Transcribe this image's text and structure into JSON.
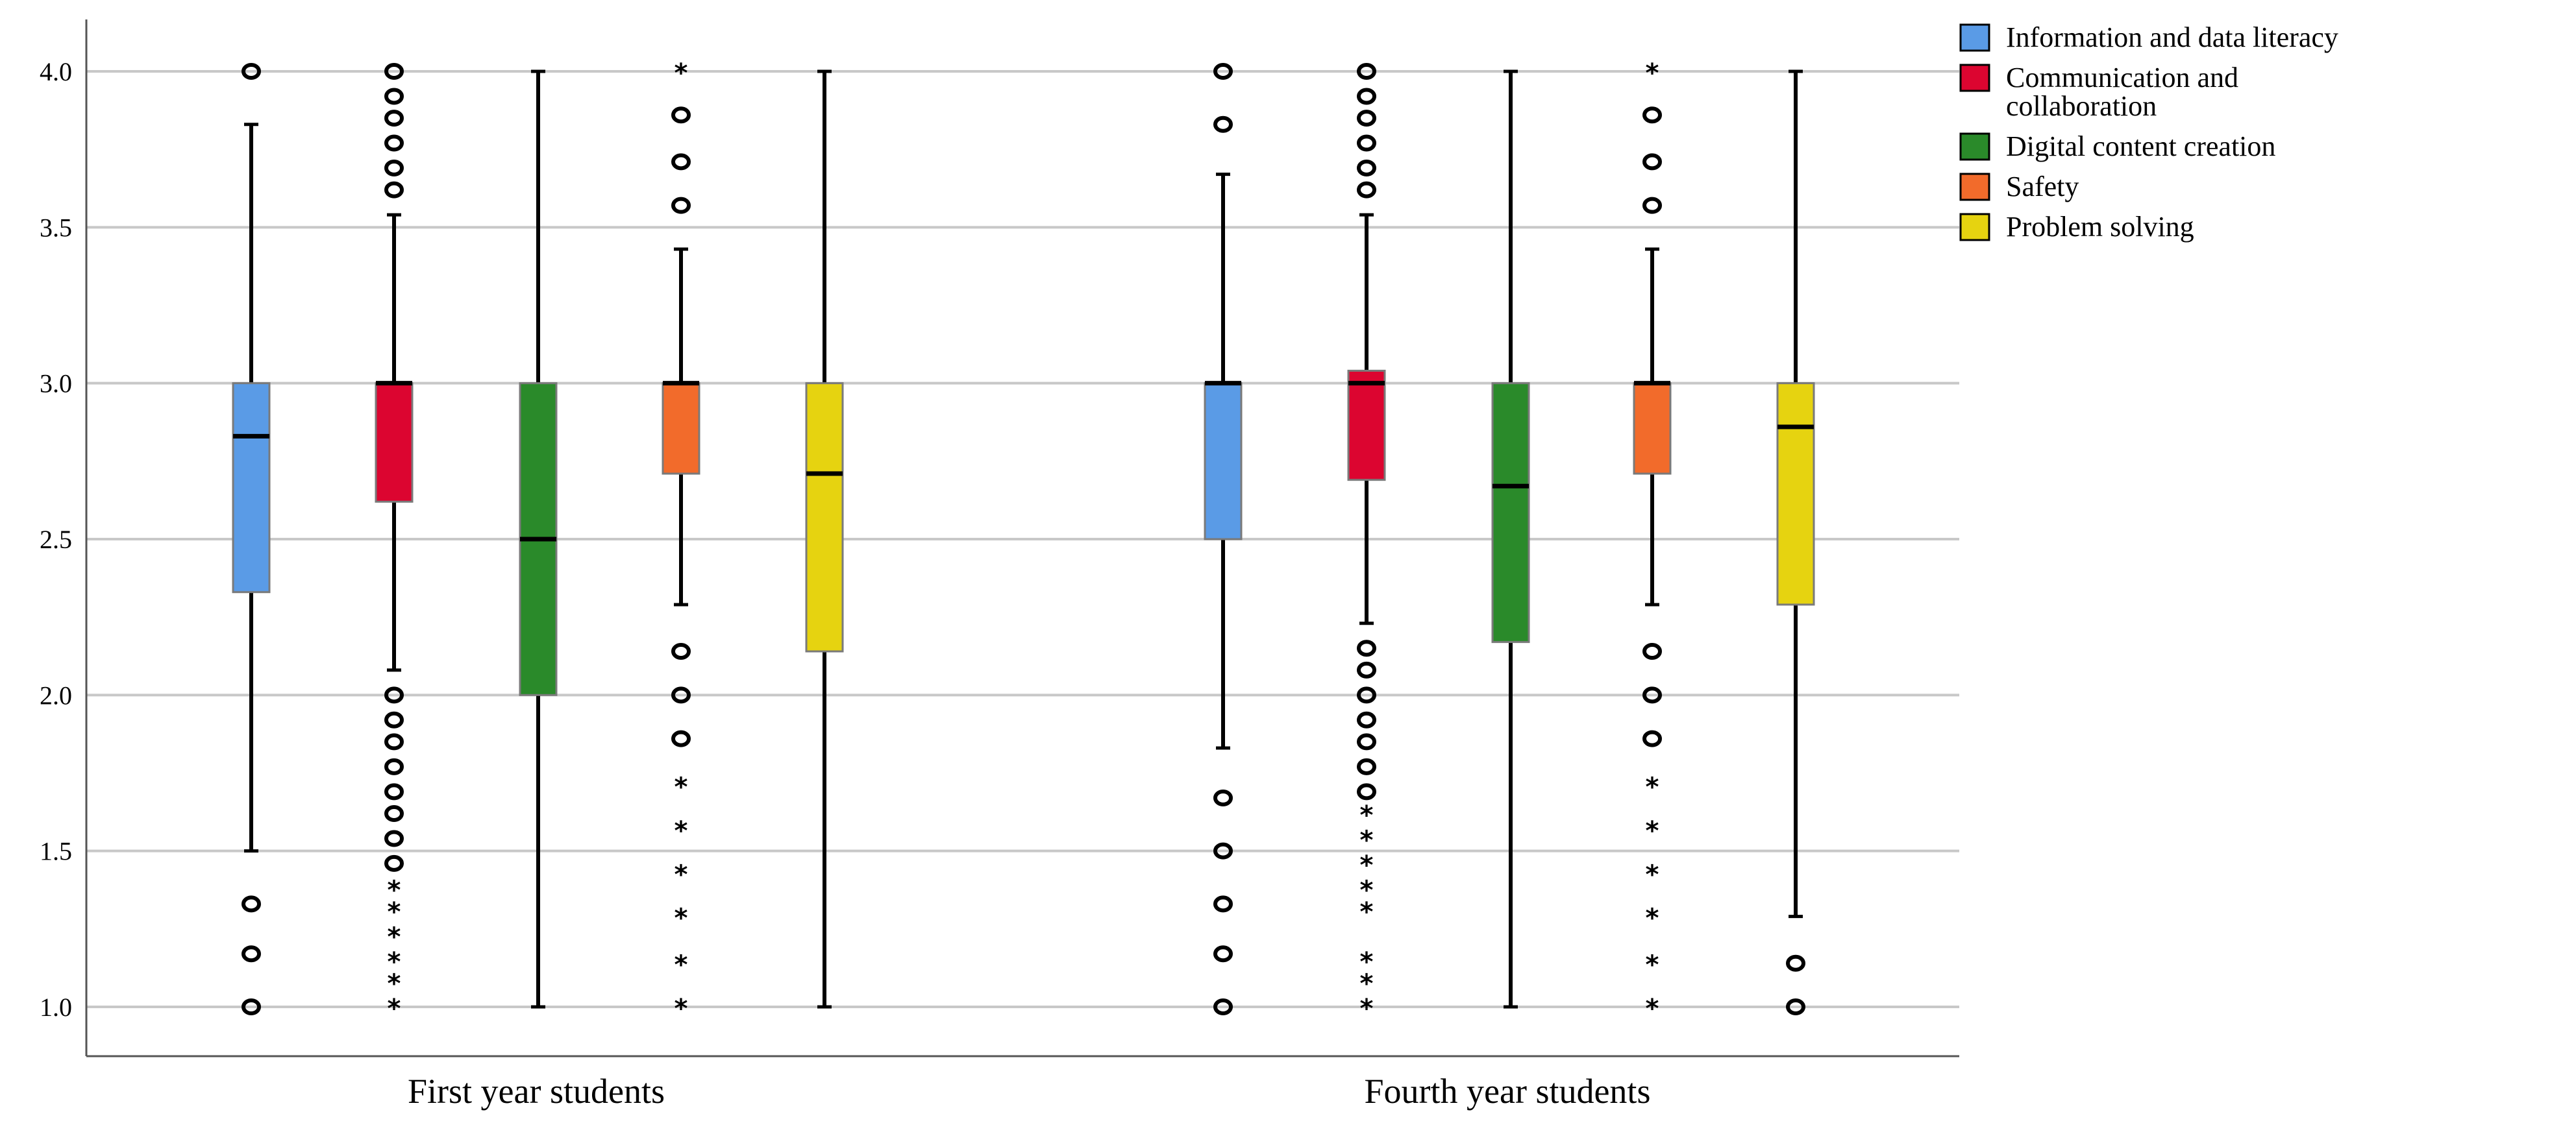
{
  "chart_data": {
    "type": "boxplot",
    "title": "",
    "xlabel": "",
    "ylabel": "",
    "ylim": [
      1.0,
      4.0
    ],
    "yticks": [
      "1.0",
      "1.5",
      "2.0",
      "2.5",
      "3.0",
      "3.5",
      "4.0"
    ],
    "grid": true,
    "legend_position": "top-right",
    "categories": [
      "First year students",
      "Fourth year students"
    ],
    "series": [
      {
        "name": "Information and data literacy",
        "color": "#5a9be6",
        "boxes": [
          {
            "whisker_low": 1.5,
            "q1": 2.33,
            "median": 2.83,
            "q3": 3.0,
            "whisker_high": 3.83,
            "outliers_circle": [
              1.0,
              1.17,
              1.33,
              4.0
            ],
            "outliers_star": []
          },
          {
            "whisker_low": 1.83,
            "q1": 2.5,
            "median": 3.0,
            "q3": 3.0,
            "whisker_high": 3.67,
            "outliers_circle": [
              1.0,
              1.17,
              1.33,
              1.5,
              1.67,
              3.83,
              4.0
            ],
            "outliers_star": []
          }
        ]
      },
      {
        "name": "Communication and\ncollaboration",
        "color": "#dc0530",
        "boxes": [
          {
            "whisker_low": 2.08,
            "q1": 2.62,
            "median": 3.0,
            "q3": 3.0,
            "whisker_high": 3.54,
            "outliers_circle": [
              1.46,
              1.54,
              1.62,
              1.69,
              1.77,
              1.85,
              1.92,
              2.0,
              3.62,
              3.69,
              3.77,
              3.85,
              3.92,
              4.0
            ],
            "outliers_star": [
              1.0,
              1.08,
              1.15,
              1.23,
              1.31,
              1.38
            ]
          },
          {
            "whisker_low": 2.23,
            "q1": 2.69,
            "median": 3.0,
            "q3": 3.04,
            "whisker_high": 3.54,
            "outliers_circle": [
              1.69,
              1.77,
              1.85,
              1.92,
              2.0,
              2.08,
              2.15,
              3.62,
              3.69,
              3.77,
              3.85,
              3.92,
              4.0
            ],
            "outliers_star": [
              1.0,
              1.08,
              1.15,
              1.31,
              1.38,
              1.46,
              1.54,
              1.62
            ]
          }
        ]
      },
      {
        "name": "Digital content creation",
        "color": "#2a8a2a",
        "boxes": [
          {
            "whisker_low": 1.0,
            "q1": 2.0,
            "median": 2.5,
            "q3": 3.0,
            "whisker_high": 4.0,
            "outliers_circle": [],
            "outliers_star": []
          },
          {
            "whisker_low": 1.0,
            "q1": 2.17,
            "median": 2.67,
            "q3": 3.0,
            "whisker_high": 4.0,
            "outliers_circle": [],
            "outliers_star": []
          }
        ]
      },
      {
        "name": "Safety",
        "color": "#f26b2b",
        "boxes": [
          {
            "whisker_low": 2.29,
            "q1": 2.71,
            "median": 3.0,
            "q3": 3.0,
            "whisker_high": 3.43,
            "outliers_circle": [
              1.86,
              2.0,
              2.14,
              3.57,
              3.71,
              3.86
            ],
            "outliers_star": [
              1.0,
              1.14,
              1.29,
              1.43,
              1.57,
              1.71,
              4.0
            ]
          },
          {
            "whisker_low": 2.29,
            "q1": 2.71,
            "median": 3.0,
            "q3": 3.0,
            "whisker_high": 3.43,
            "outliers_circle": [
              1.86,
              2.0,
              2.14,
              3.57,
              3.71,
              3.86
            ],
            "outliers_star": [
              1.0,
              1.14,
              1.29,
              1.43,
              1.57,
              1.71,
              4.0
            ]
          }
        ]
      },
      {
        "name": "Problem solving",
        "color": "#e6d310",
        "boxes": [
          {
            "whisker_low": 1.0,
            "q1": 2.14,
            "median": 2.71,
            "q3": 3.0,
            "whisker_high": 4.0,
            "outliers_circle": [],
            "outliers_star": []
          },
          {
            "whisker_low": 1.29,
            "q1": 2.29,
            "median": 2.86,
            "q3": 3.0,
            "whisker_high": 4.0,
            "outliers_circle": [
              1.0,
              1.14
            ],
            "outliers_star": []
          }
        ]
      }
    ]
  }
}
